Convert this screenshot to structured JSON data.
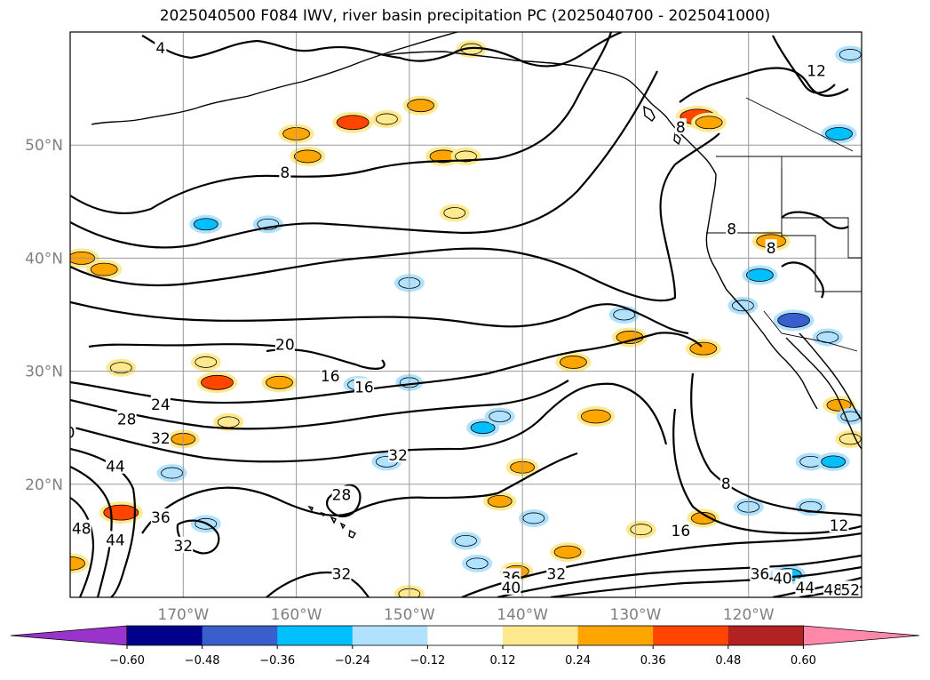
{
  "chart_data": {
    "type": "contour-map",
    "title": "2025040500 F084 IWV, river basin precipitation PC (2025040700 - 2025041000)",
    "lon_range": [
      -180,
      -110
    ],
    "lat_range": [
      10,
      60
    ],
    "lat_ticks": [
      {
        "value": 20,
        "label": "20°N"
      },
      {
        "value": 30,
        "label": "30°N"
      },
      {
        "value": 40,
        "label": "40°N"
      },
      {
        "value": 50,
        "label": "50°N"
      }
    ],
    "lon_ticks": [
      {
        "value": -170,
        "label": "170°W"
      },
      {
        "value": -160,
        "label": "160°W"
      },
      {
        "value": -150,
        "label": "150°W"
      },
      {
        "value": -140,
        "label": "140°W"
      },
      {
        "value": -130,
        "label": "130°W"
      },
      {
        "value": -120,
        "label": "120°W"
      }
    ],
    "grid": true,
    "iwv_contour_labels": [
      {
        "text": "4",
        "lon": -172,
        "lat": 58.5
      },
      {
        "text": "8",
        "lon": -161,
        "lat": 47.5
      },
      {
        "text": "20",
        "lon": -161,
        "lat": 32.3
      },
      {
        "text": "16",
        "lon": -157,
        "lat": 29.5
      },
      {
        "text": "16",
        "lon": -154,
        "lat": 28.5
      },
      {
        "text": "24",
        "lon": -172,
        "lat": 27
      },
      {
        "text": "28",
        "lon": -175,
        "lat": 25.7
      },
      {
        "text": "32",
        "lon": -172,
        "lat": 24
      },
      {
        "text": "44",
        "lon": -176,
        "lat": 21.5
      },
      {
        "text": "36",
        "lon": -172,
        "lat": 17
      },
      {
        "text": "32",
        "lon": -170,
        "lat": 14.5
      },
      {
        "text": "48",
        "lon": -179,
        "lat": 16
      },
      {
        "text": "44",
        "lon": -176,
        "lat": 15
      },
      {
        "text": "32",
        "lon": -151,
        "lat": 22.5
      },
      {
        "text": "28",
        "lon": -156,
        "lat": 19
      },
      {
        "text": "32",
        "lon": -156,
        "lat": 12
      },
      {
        "text": "36",
        "lon": -141,
        "lat": 11.7
      },
      {
        "text": "40",
        "lon": -141,
        "lat": 10.8
      },
      {
        "text": "32",
        "lon": -137,
        "lat": 12
      },
      {
        "text": "8",
        "lon": -122,
        "lat": 20
      },
      {
        "text": "16",
        "lon": -126,
        "lat": 15.8
      },
      {
        "text": "12",
        "lon": -112,
        "lat": 16.3
      },
      {
        "text": "36",
        "lon": -119,
        "lat": 12
      },
      {
        "text": "40",
        "lon": -117,
        "lat": 11.6
      },
      {
        "text": "44",
        "lon": -115,
        "lat": 10.8
      },
      {
        "text": "48",
        "lon": -112.5,
        "lat": 10.6
      },
      {
        "text": "52",
        "lon": -111,
        "lat": 10.6
      },
      {
        "text": "12",
        "lon": -114,
        "lat": 56.5
      },
      {
        "text": "8",
        "lon": -126,
        "lat": 51.5
      },
      {
        "text": "8",
        "lon": -121.5,
        "lat": 42.5
      },
      {
        "text": "8",
        "lon": -118,
        "lat": 40.8
      },
      {
        "text": "0",
        "lon": -180,
        "lat": 24.5
      }
    ],
    "colorbar": {
      "levels": [
        -0.6,
        -0.48,
        -0.36,
        -0.24,
        -0.12,
        0.12,
        0.24,
        0.36,
        0.48,
        0.6
      ],
      "tick_labels": [
        "−0.60",
        "−0.48",
        "−0.36",
        "−0.24",
        "−0.12",
        "0.12",
        "0.24",
        "0.36",
        "0.48",
        "0.60"
      ],
      "colors": [
        "#9933cc",
        "#00008b",
        "#3a5fcd",
        "#00bfff",
        "#b0e2ff",
        "#ffffff",
        "#ffe98f",
        "#ffa500",
        "#ff4500",
        "#b22222",
        "#ff88aa"
      ],
      "extend": "both"
    },
    "precip_blobs": [
      {
        "lon": -175.5,
        "lat": 30.3,
        "value": 0.2
      },
      {
        "lon": -168,
        "lat": 30.8,
        "value": 0.2
      },
      {
        "lon": -167,
        "lat": 29.0,
        "value": 0.4
      },
      {
        "lon": -161.5,
        "lat": 29.0,
        "value": 0.3
      },
      {
        "lon": -160,
        "lat": 51.0,
        "value": 0.3
      },
      {
        "lon": -155,
        "lat": 52.0,
        "value": 0.4
      },
      {
        "lon": -159,
        "lat": 49.0,
        "value": 0.3
      },
      {
        "lon": -152,
        "lat": 52.3,
        "value": 0.2
      },
      {
        "lon": -149,
        "lat": 53.5,
        "value": 0.3
      },
      {
        "lon": -147,
        "lat": 49.0,
        "value": 0.3
      },
      {
        "lon": -145,
        "lat": 49.0,
        "value": 0.2
      },
      {
        "lon": -146,
        "lat": 44.0,
        "value": 0.2
      },
      {
        "lon": -179,
        "lat": 40.0,
        "value": 0.3
      },
      {
        "lon": -177,
        "lat": 39.0,
        "value": 0.3
      },
      {
        "lon": -175.5,
        "lat": 17.5,
        "value": 0.45
      },
      {
        "lon": -180,
        "lat": 13.0,
        "value": 0.35
      },
      {
        "lon": -170,
        "lat": 24.0,
        "value": 0.25
      },
      {
        "lon": -166,
        "lat": 25.5,
        "value": 0.2
      },
      {
        "lon": -140,
        "lat": 21.5,
        "value": 0.25
      },
      {
        "lon": -142,
        "lat": 18.5,
        "value": 0.25
      },
      {
        "lon": -135.5,
        "lat": 30.8,
        "value": 0.3
      },
      {
        "lon": -133.5,
        "lat": 26.0,
        "value": 0.35
      },
      {
        "lon": -130.5,
        "lat": 33.0,
        "value": 0.3
      },
      {
        "lon": -124,
        "lat": 32.0,
        "value": 0.3
      },
      {
        "lon": -124,
        "lat": 17.0,
        "value": 0.25
      },
      {
        "lon": -129.5,
        "lat": 16.0,
        "value": 0.2
      },
      {
        "lon": -136,
        "lat": 14.0,
        "value": 0.3
      },
      {
        "lon": -140.5,
        "lat": 12.3,
        "value": 0.25
      },
      {
        "lon": -150,
        "lat": 10.3,
        "value": 0.2
      },
      {
        "lon": -124.5,
        "lat": 52.5,
        "value": 0.45
      },
      {
        "lon": -123.5,
        "lat": 52.0,
        "value": 0.3
      },
      {
        "lon": -118,
        "lat": 41.5,
        "value": 0.35
      },
      {
        "lon": -112,
        "lat": 27.0,
        "value": 0.25
      },
      {
        "lon": -111,
        "lat": 24.0,
        "value": 0.2
      },
      {
        "lon": -144.5,
        "lat": 58.5,
        "value": 0.2
      },
      {
        "lon": -168,
        "lat": 43.0,
        "value": -0.25
      },
      {
        "lon": -162.5,
        "lat": 43.0,
        "value": -0.2
      },
      {
        "lon": -150,
        "lat": 37.8,
        "value": -0.2
      },
      {
        "lon": -150,
        "lat": 29.0,
        "value": -0.15
      },
      {
        "lon": -143.5,
        "lat": 25.0,
        "value": -0.25
      },
      {
        "lon": -142,
        "lat": 26.0,
        "value": -0.2
      },
      {
        "lon": -145,
        "lat": 15.0,
        "value": -0.2
      },
      {
        "lon": -144,
        "lat": 13.0,
        "value": -0.2
      },
      {
        "lon": -139,
        "lat": 17.0,
        "value": -0.2
      },
      {
        "lon": -171,
        "lat": 21.0,
        "value": -0.2
      },
      {
        "lon": -168,
        "lat": 16.5,
        "value": -0.2
      },
      {
        "lon": -154.5,
        "lat": 28.8,
        "value": -0.2
      },
      {
        "lon": -152,
        "lat": 22.0,
        "value": -0.2
      },
      {
        "lon": -131,
        "lat": 35.0,
        "value": -0.2
      },
      {
        "lon": -119,
        "lat": 38.5,
        "value": -0.3
      },
      {
        "lon": -116,
        "lat": 34.5,
        "value": -0.4
      },
      {
        "lon": -120.5,
        "lat": 35.8,
        "value": -0.2
      },
      {
        "lon": -113,
        "lat": 33.0,
        "value": -0.2
      },
      {
        "lon": -114.5,
        "lat": 22.0,
        "value": -0.2
      },
      {
        "lon": -114.5,
        "lat": 18.0,
        "value": -0.2
      },
      {
        "lon": -112.5,
        "lat": 22.0,
        "value": -0.25
      },
      {
        "lon": -111,
        "lat": 26.0,
        "value": -0.15
      },
      {
        "lon": -120,
        "lat": 18.0,
        "value": -0.2
      },
      {
        "lon": -112,
        "lat": 51.0,
        "value": -0.3
      },
      {
        "lon": -111,
        "lat": 58.0,
        "value": -0.2
      },
      {
        "lon": -116.5,
        "lat": 12.0,
        "value": -0.3
      }
    ]
  }
}
